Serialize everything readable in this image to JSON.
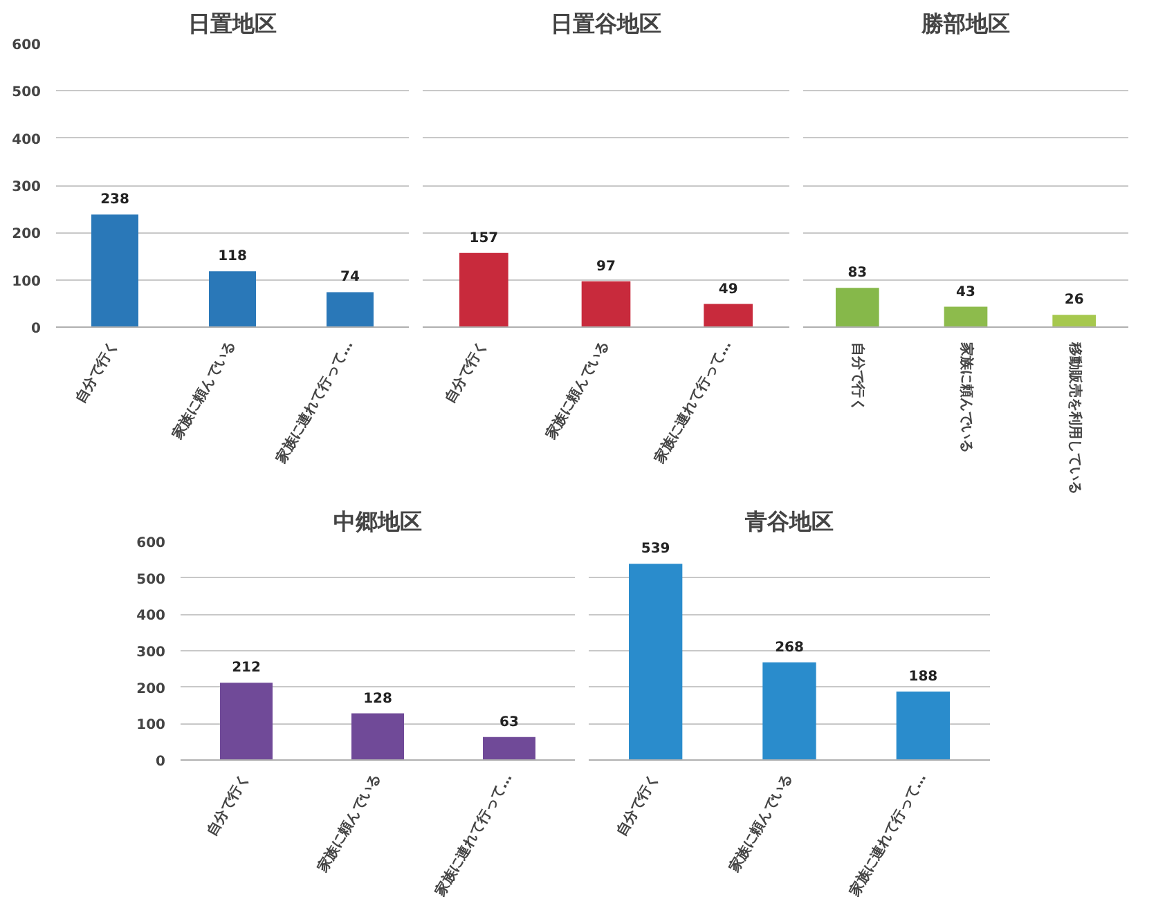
{
  "chart_data": [
    {
      "type": "bar",
      "title": "日置地区",
      "categories": [
        "自分で行く",
        "家族に頼んでいる",
        "家族に連れて行って…"
      ],
      "values": [
        238,
        118,
        74
      ],
      "color": "#2a78b8",
      "ylim": [
        0,
        600
      ],
      "yticks": [
        0,
        100,
        200,
        300,
        400,
        500,
        600
      ],
      "grid": "y",
      "data_labels": true
    },
    {
      "type": "bar",
      "title": "日置谷地区",
      "categories": [
        "自分で行く",
        "家族に頼んでいる",
        "家族に連れて行って…"
      ],
      "values": [
        157,
        97,
        49
      ],
      "color": "#c82a3c",
      "ylim": [
        0,
        600
      ],
      "yticks": [
        0,
        100,
        200,
        300,
        400,
        500,
        600
      ],
      "grid": "y",
      "data_labels": true,
      "tick_labels": "x"
    },
    {
      "type": "bar",
      "title": "勝部地区",
      "categories": [
        "自分で行く",
        "家族に頼んでいる",
        "移動販売を利用している"
      ],
      "values": [
        83,
        43,
        26
      ],
      "colors": [
        "#86b84a",
        "#8dbb4c",
        "#a6c84e"
      ],
      "ylim": [
        0,
        600
      ],
      "yticks": [
        0,
        100,
        200,
        300,
        400,
        500,
        600
      ],
      "grid": "y",
      "data_labels": true,
      "tick_labels": "x"
    },
    {
      "type": "bar",
      "title": "中郷地区",
      "categories": [
        "自分で行く",
        "家族に頼んでいる",
        "家族に連れて行って…"
      ],
      "values": [
        212,
        128,
        63
      ],
      "color": "#704a98",
      "ylim": [
        0,
        600
      ],
      "yticks": [
        0,
        100,
        200,
        300,
        400,
        500,
        600
      ],
      "grid": "y",
      "data_labels": true
    },
    {
      "type": "bar",
      "title": "青谷地区",
      "categories": [
        "自分で行く",
        "家族に頼んでいる",
        "家族に連れて行って…"
      ],
      "values": [
        539,
        268,
        188
      ],
      "color": "#2a8ccc",
      "ylim": [
        0,
        600
      ],
      "yticks": [
        0,
        100,
        200,
        300,
        400,
        500,
        600
      ],
      "grid": "y",
      "data_labels": true,
      "tick_labels": "x"
    }
  ]
}
